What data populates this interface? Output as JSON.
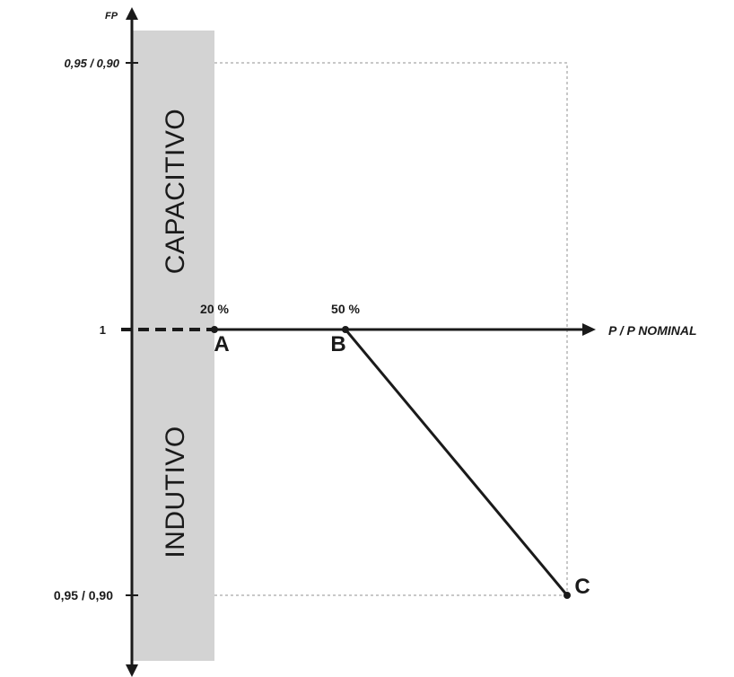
{
  "axes": {
    "y_label": "FP",
    "x_label": "P / P NOMINAL",
    "y_top_tick": "0,95 / 0,90",
    "y_mid_tick": "1",
    "y_bottom_tick": "0,95 / 0,90"
  },
  "zones": {
    "upper": "CAPACITIVO",
    "lower": "INDUTIVO"
  },
  "points": {
    "a_label": "A",
    "a_percent": "20 %",
    "b_label": "B",
    "b_percent": "50 %",
    "c_label": "C"
  },
  "colors": {
    "shaded_zone": "#d3d3d3",
    "lines": "#1a1a1a",
    "guide": "#c8c8c8"
  }
}
